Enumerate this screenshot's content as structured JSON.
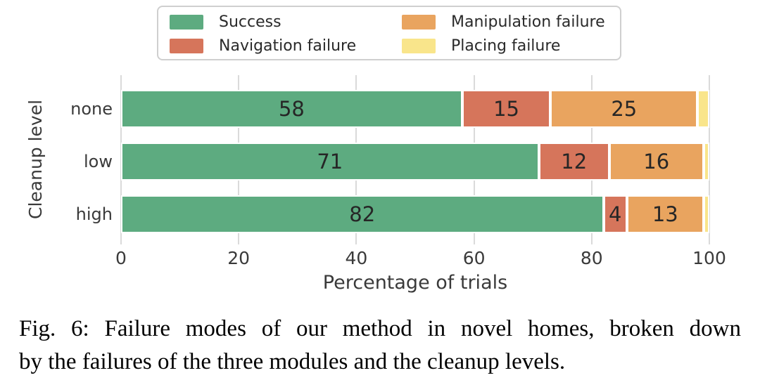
{
  "figure": {
    "caption_line1": "Fig. 6: Failure modes of our method in novel homes, broken down",
    "caption_line2": "by the failures of the three modules and the cleanup levels."
  },
  "chart_data": {
    "type": "bar",
    "orientation": "horizontal",
    "stacked": true,
    "title": "",
    "categories": [
      "none",
      "low",
      "high"
    ],
    "series": [
      {
        "name": "Success",
        "color": "#5dab80",
        "values": [
          58,
          71,
          82
        ],
        "show_value_labels": true
      },
      {
        "name": "Navigation failure",
        "color": "#d6755b",
        "values": [
          15,
          12,
          4
        ],
        "show_value_labels": true
      },
      {
        "name": "Manipulation failure",
        "color": "#e9a45f",
        "values": [
          25,
          16,
          13
        ],
        "show_value_labels": true
      },
      {
        "name": "Placing failure",
        "color": "#f9e58b",
        "values": [
          2,
          1,
          1
        ],
        "show_value_labels": false
      }
    ],
    "xlabel": "Percentage of trials",
    "ylabel": "Cleanup level",
    "xlim": [
      0,
      100
    ],
    "xticks": [
      0,
      20,
      40,
      60,
      80,
      100
    ],
    "legend_position": "top",
    "grid": "vertical"
  }
}
